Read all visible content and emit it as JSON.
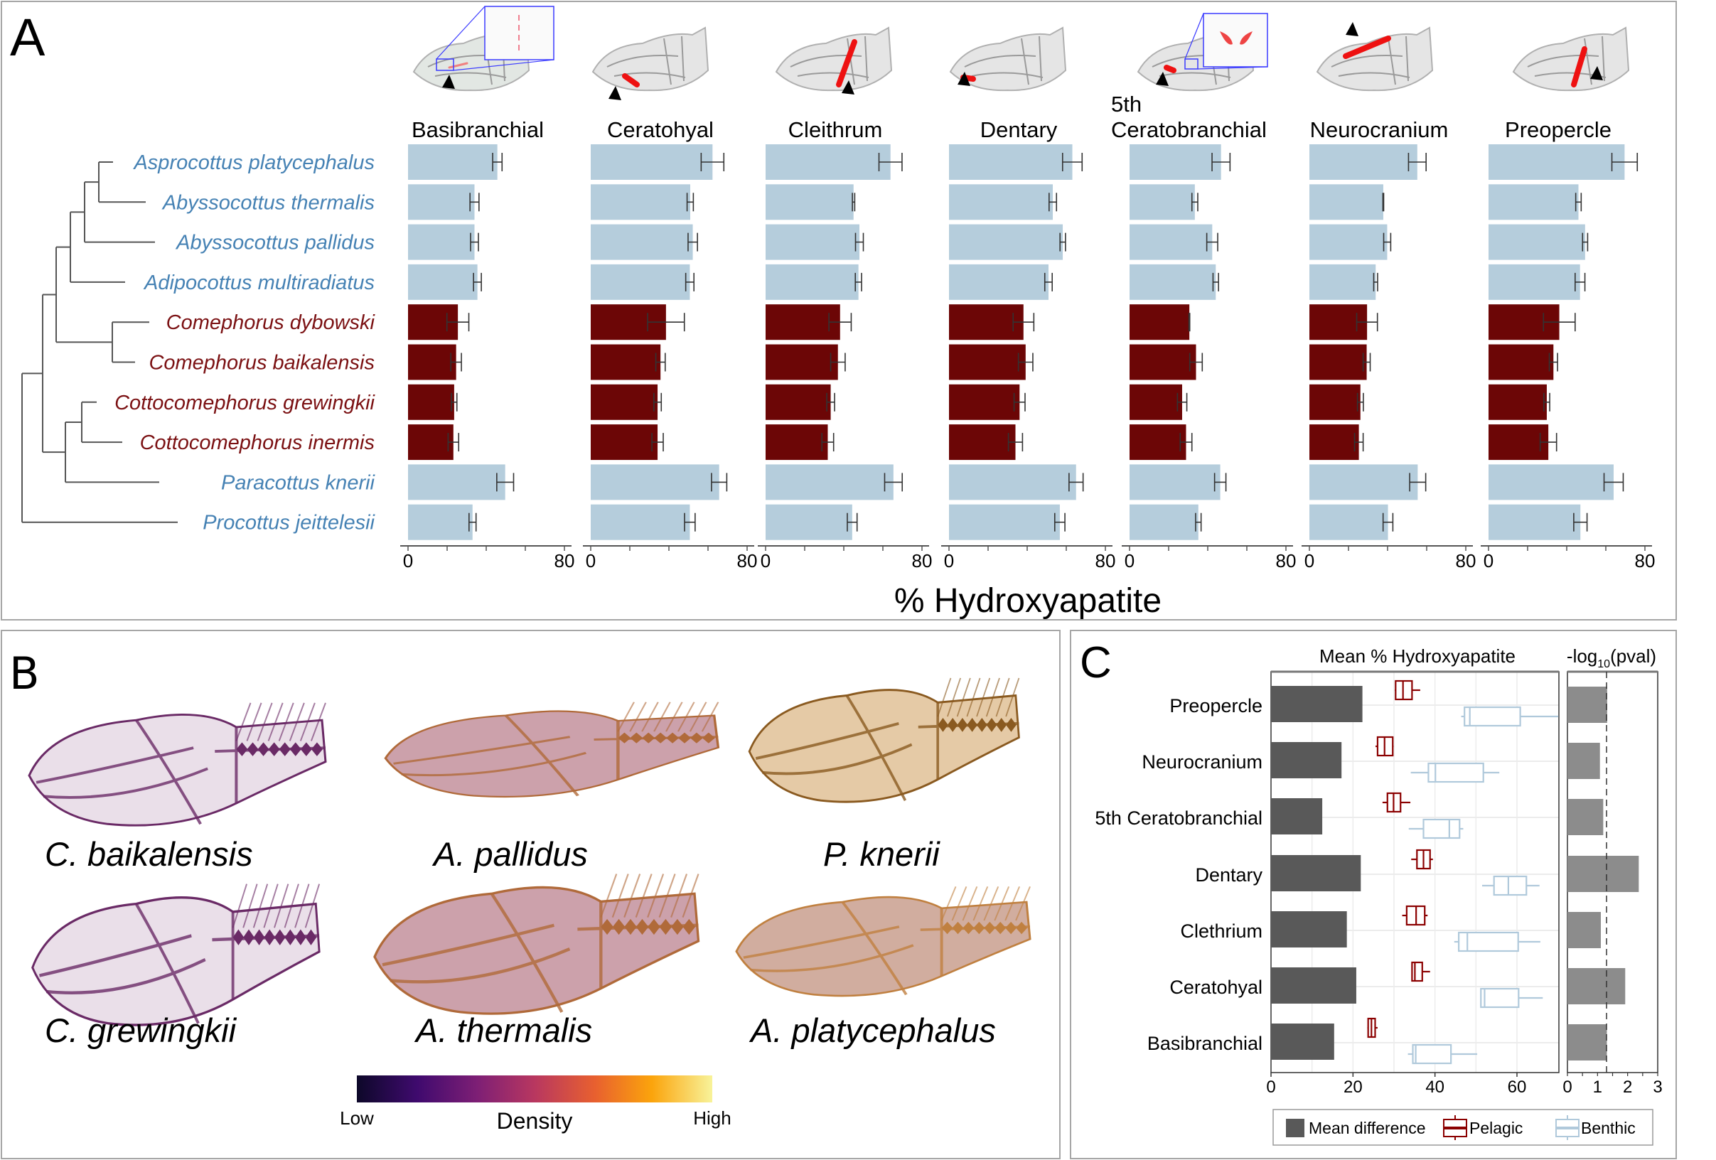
{
  "figure": {
    "panel_labels": {
      "a": "A",
      "b": "B",
      "c": "C"
    }
  },
  "panelA": {
    "species": [
      {
        "name": "Asprocottus platycephalus",
        "habitat": "benthic"
      },
      {
        "name": "Abyssocottus thermalis",
        "habitat": "benthic"
      },
      {
        "name": "Abyssocottus pallidus",
        "habitat": "benthic"
      },
      {
        "name": "Adipocottus multiradiatus",
        "habitat": "benthic"
      },
      {
        "name": "Comephorus dybowski",
        "habitat": "pelagic"
      },
      {
        "name": "Comephorus baikalensis",
        "habitat": "pelagic"
      },
      {
        "name": "Cottocomephorus grewingkii",
        "habitat": "pelagic"
      },
      {
        "name": "Cottocomephorus inermis",
        "habitat": "pelagic"
      },
      {
        "name": "Paracottus knerii",
        "habitat": "benthic"
      },
      {
        "name": "Procottus jeittelesii",
        "habitat": "benthic"
      }
    ],
    "tree_icon": "phylogeny-cladogram",
    "bone_thumbnail_icon": "highlighted-bone-skull-render",
    "colors": {
      "benthic_bar": "#b5cddc",
      "pelagic_bar": "#6c0606",
      "benthic_text": "#4682b4",
      "pelagic_text": "#7b1113",
      "error_bar": "#333333"
    }
  },
  "chart_data": [
    {
      "type": "bar",
      "orientation": "horizontal",
      "title": "",
      "xlabel": "% Hydroxyapatite",
      "ylabel": "",
      "xlim": [
        0,
        80
      ],
      "xticks": [
        "0",
        "80"
      ],
      "categories": [
        "Asprocottus platycephalus",
        "Abyssocottus thermalis",
        "Abyssocottus pallidus",
        "Adipocottus multiradiatus",
        "Comephorus dybowski",
        "Comephorus baikalensis",
        "Cottocomephorus grewingkii",
        "Cottocomephorus inermis",
        "Paracottus knerii",
        "Procottus jeittelesii"
      ],
      "series": [
        {
          "name": "Basibranchial",
          "values": [
            45.7,
            34.0,
            34.0,
            35.5,
            25.5,
            24.6,
            23.6,
            23.2,
            49.7,
            33.0
          ],
          "error": [
            2.4,
            2.3,
            2.0,
            2.0,
            5.6,
            2.7,
            1.4,
            2.7,
            4.3,
            1.8
          ]
        },
        {
          "name": "Ceratohyal",
          "values": [
            62.3,
            50.9,
            52.2,
            50.7,
            38.5,
            35.7,
            34.2,
            34.2,
            65.7,
            50.7
          ],
          "error": [
            5.8,
            1.6,
            2.4,
            2.1,
            9.4,
            2.4,
            1.9,
            2.9,
            3.9,
            2.7
          ]
        },
        {
          "name": "Cleithrum",
          "values": [
            63.9,
            45.0,
            48.0,
            47.5,
            38.1,
            37.0,
            33.3,
            31.8,
            65.4,
            44.3
          ],
          "error": [
            5.9,
            0.6,
            2.0,
            1.6,
            5.7,
            3.7,
            2.0,
            3.0,
            4.5,
            2.5
          ]
        },
        {
          "name": "Dentary",
          "values": [
            63.1,
            53.1,
            58.2,
            50.9,
            38.1,
            39.2,
            36.1,
            34.0,
            65.0,
            56.7
          ],
          "error": [
            5.0,
            1.9,
            1.4,
            1.9,
            5.3,
            3.7,
            2.8,
            3.6,
            3.6,
            2.6
          ]
        },
        {
          "name": "5th Ceratobranchial",
          "values": [
            46.8,
            33.4,
            42.3,
            44.1,
            30.6,
            34.0,
            26.9,
            28.9,
            46.4,
            35.2
          ],
          "error": [
            4.6,
            1.5,
            2.8,
            1.4,
            0.2,
            3.2,
            2.4,
            3.0,
            2.9,
            1.4
          ]
        },
        {
          "name": "Neurocranium",
          "values": [
            55.2,
            37.8,
            39.8,
            33.9,
            29.5,
            29.3,
            26.1,
            25.3,
            55.4,
            40.2
          ],
          "error": [
            4.5,
            0.2,
            1.8,
            1.0,
            5.3,
            1.8,
            1.5,
            2.2,
            4.1,
            2.5
          ]
        },
        {
          "name": "Preopercle",
          "values": [
            69.6,
            46.0,
            49.4,
            46.8,
            36.2,
            33.2,
            29.8,
            30.6,
            64.0,
            47.0
          ],
          "error": [
            6.5,
            1.4,
            1.3,
            2.5,
            8.1,
            2.1,
            1.5,
            4.2,
            4.9,
            3.4
          ]
        }
      ],
      "panel_titles": [
        [
          "Basibranchial"
        ],
        [
          "Ceratohyal"
        ],
        [
          "Cleithrum"
        ],
        [
          "Dentary"
        ],
        [
          "5th",
          "Ceratobranchial"
        ],
        [
          "Neurocranium"
        ],
        [
          "Preopercle"
        ]
      ],
      "grid": false,
      "legend": "none"
    },
    {
      "type": "bar",
      "orientation": "horizontal",
      "title": "Mean % Hydroxyapatite",
      "xlabel": "",
      "xlim": [
        0,
        70
      ],
      "xticks": [
        0,
        20,
        40,
        60
      ],
      "categories": [
        "Preopercle",
        "Neurocranium",
        "5th Ceratobranchial",
        "Dentary",
        "Clethrium",
        "Ceratohyal",
        "Basibranchial"
      ],
      "series": [
        {
          "name": "Mean difference",
          "type": "bar",
          "color": "#595959",
          "values": [
            22.3,
            17.2,
            12.5,
            21.9,
            18.5,
            20.8,
            15.4
          ]
        },
        {
          "name": "Pelagic",
          "type": "boxplot",
          "color": "#8b0000",
          "values": [
            {
              "whisker_low": 30.2,
              "q1": 30.4,
              "median": 32.2,
              "q3": 34.4,
              "whisker_high": 36.4
            },
            {
              "whisker_low": 25.5,
              "q1": 26.0,
              "median": 27.7,
              "q3": 29.7,
              "whisker_high": 29.9
            },
            {
              "whisker_low": 27.2,
              "q1": 28.4,
              "median": 29.9,
              "q3": 31.6,
              "whisker_high": 34.0
            },
            {
              "whisker_low": 34.2,
              "q1": 35.6,
              "median": 37.2,
              "q3": 38.8,
              "whisker_high": 39.5
            },
            {
              "whisker_low": 32.0,
              "q1": 33.1,
              "median": 35.4,
              "q3": 37.5,
              "whisker_high": 38.2
            },
            {
              "whisker_low": 34.4,
              "q1": 34.4,
              "median": 35.1,
              "q3": 36.9,
              "whisker_high": 38.8
            },
            {
              "whisker_low": 23.5,
              "q1": 23.7,
              "median": 24.5,
              "q3": 25.4,
              "whisker_high": 26.0
            }
          ]
        },
        {
          "name": "Benthic",
          "type": "boxplot",
          "color": "#b0c9db",
          "values": [
            {
              "whisker_low": 46.4,
              "q1": 47.2,
              "median": 48.5,
              "q3": 60.8,
              "whisker_high": 70.1
            },
            {
              "whisker_low": 34.1,
              "q1": 38.4,
              "median": 40.1,
              "q3": 51.8,
              "whisker_high": 55.7
            },
            {
              "whisker_low": 33.6,
              "q1": 37.2,
              "median": 43.5,
              "q3": 46.0,
              "whisker_high": 46.9
            },
            {
              "whisker_low": 51.5,
              "q1": 54.4,
              "median": 57.9,
              "q3": 62.3,
              "whisker_high": 65.5
            },
            {
              "whisker_low": 44.7,
              "q1": 45.8,
              "median": 47.9,
              "q3": 60.3,
              "whisker_high": 65.7
            },
            {
              "whisker_low": 51.2,
              "q1": 51.2,
              "median": 52.1,
              "q3": 60.4,
              "whisker_high": 66.3
            },
            {
              "whisker_low": 33.4,
              "q1": 34.6,
              "median": 35.3,
              "q3": 43.9,
              "whisker_high": 50.3
            }
          ]
        }
      ],
      "grid": true,
      "legend": "bottom"
    },
    {
      "type": "bar",
      "orientation": "horizontal",
      "title_prefix": "-log",
      "title_sub": "10",
      "title_suffix": "(pval)",
      "xlim": [
        0,
        3
      ],
      "xticks": [
        0,
        1,
        2,
        3
      ],
      "categories": [
        "Preopercle",
        "Neurocranium",
        "5th Ceratobranchial",
        "Dentary",
        "Clethrium",
        "Ceratohyal",
        "Basibranchial"
      ],
      "values": [
        1.32,
        1.08,
        1.19,
        2.37,
        1.11,
        1.92,
        1.31
      ],
      "color": "#8c8c8c",
      "reference_line": 1.3,
      "reference_line_style": "dashed",
      "grid": false
    }
  ],
  "panelB": {
    "specimens": [
      {
        "label": "C. baikalensis",
        "tone": "low"
      },
      {
        "label": "A. pallidus",
        "tone": "mid"
      },
      {
        "label": "P. knerii",
        "tone": "high"
      },
      {
        "label": "C. grewingkii",
        "tone": "low"
      },
      {
        "label": "A. thermalis",
        "tone": "mid"
      },
      {
        "label": "A. platycephalus",
        "tone": "midhigh"
      }
    ],
    "specimen_icon": "fish-skull-ct-render",
    "colorbar": {
      "low": "Low",
      "title": "Density",
      "high": "High",
      "stops": [
        "#0d0829",
        "#3f0a6e",
        "#7e1f75",
        "#b83760",
        "#e8602f",
        "#fba40c",
        "#f8f39a"
      ]
    }
  },
  "panelC": {
    "legend": {
      "mean_diff": "Mean difference",
      "pelagic": "Pelagic",
      "benthic": "Benthic"
    }
  }
}
